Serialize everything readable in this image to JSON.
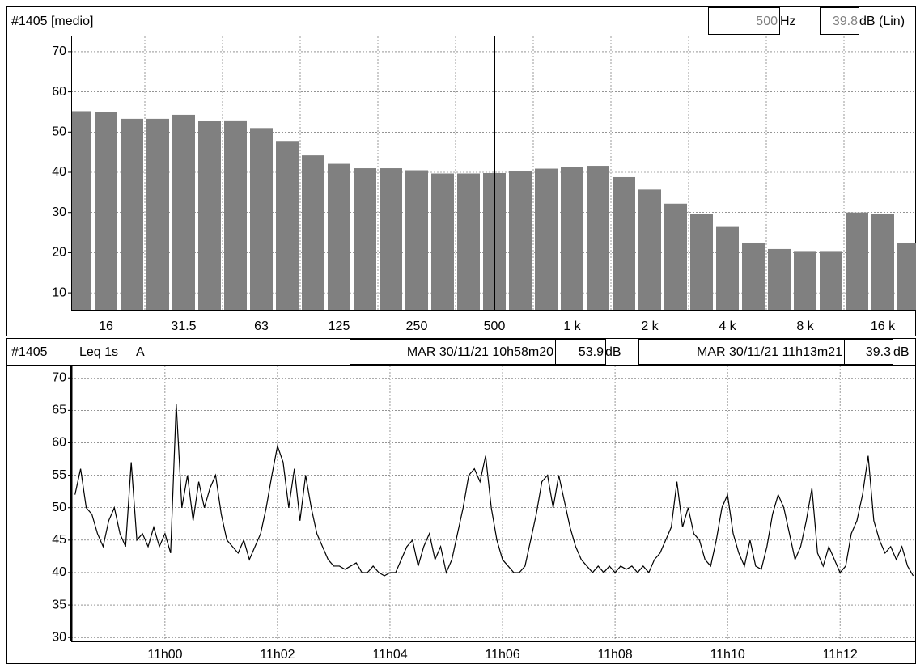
{
  "chart_data": [
    {
      "type": "bar",
      "header": {
        "source": "#1405 [medio]",
        "cursor_freq": "500",
        "freq_unit": "Hz",
        "cursor_level": "39.8",
        "level_unit": "dB (Lin)"
      },
      "categories": [
        null,
        "16",
        null,
        null,
        "31.5",
        null,
        null,
        "63",
        null,
        null,
        "125",
        null,
        null,
        "250",
        null,
        null,
        "500",
        null,
        null,
        "1 k",
        null,
        null,
        "2 k",
        null,
        null,
        "4 k",
        null,
        null,
        "8 k",
        null,
        null,
        "16 k",
        null
      ],
      "values": [
        55.2,
        54.9,
        53.3,
        53.3,
        54.3,
        52.7,
        52.9,
        51.0,
        47.8,
        44.2,
        42.1,
        41.0,
        41.0,
        40.5,
        39.7,
        39.7,
        39.8,
        40.2,
        40.9,
        41.3,
        41.6,
        38.8,
        35.7,
        32.2,
        29.6,
        26.4,
        22.5,
        20.9,
        20.4,
        20.4,
        30.0,
        29.6,
        22.5
      ],
      "color": "#808080",
      "ylim": [
        5.8,
        73.8
      ],
      "yticks": [
        10,
        20,
        30,
        40,
        50,
        60,
        70
      ],
      "grid": true
    },
    {
      "type": "line",
      "header": {
        "source": "#1405",
        "measure": "Leq 1s",
        "weighting": "A",
        "start_time": "MAR 30/11/21 10h58m20",
        "start_level": "53.9",
        "start_unit": "dB",
        "end_time": "MAR 30/11/21 11h13m21",
        "end_level": "39.3",
        "end_unit": "dB"
      },
      "x": [
        658.4,
        658.5,
        658.6,
        658.7,
        658.8,
        658.9,
        659.0,
        659.1,
        659.2,
        659.3,
        659.4,
        659.5,
        659.6,
        659.7,
        659.8,
        659.9,
        660.0,
        660.1,
        660.2,
        660.3,
        660.4,
        660.5,
        660.6,
        660.7,
        660.8,
        660.9,
        661.0,
        661.1,
        661.2,
        661.3,
        661.4,
        661.5,
        661.6,
        661.7,
        661.8,
        661.9,
        662.0,
        662.1,
        662.2,
        662.3,
        662.4,
        662.5,
        662.6,
        662.7,
        662.8,
        662.9,
        663.0,
        663.1,
        663.2,
        663.3,
        663.4,
        663.5,
        663.6,
        663.7,
        663.8,
        663.9,
        664.0,
        664.1,
        664.2,
        664.3,
        664.4,
        664.5,
        664.6,
        664.7,
        664.8,
        664.9,
        665.0,
        665.1,
        665.2,
        665.3,
        665.4,
        665.5,
        665.6,
        665.7,
        665.8,
        665.9,
        666.0,
        666.1,
        666.2,
        666.3,
        666.4,
        666.5,
        666.6,
        666.7,
        666.8,
        666.9,
        667.0,
        667.1,
        667.2,
        667.3,
        667.4,
        667.5,
        667.6,
        667.7,
        667.8,
        667.9,
        668.0,
        668.1,
        668.2,
        668.3,
        668.4,
        668.5,
        668.6,
        668.7,
        668.8,
        668.9,
        669.0,
        669.1,
        669.2,
        669.3,
        669.4,
        669.5,
        669.6,
        669.7,
        669.8,
        669.9,
        670.0,
        670.1,
        670.2,
        670.3,
        670.4,
        670.5,
        670.6,
        670.7,
        670.8,
        670.9,
        671.0,
        671.1,
        671.2,
        671.3,
        671.4,
        671.5,
        671.6,
        671.7,
        671.8,
        671.9,
        672.0,
        672.1,
        672.2,
        672.3,
        672.4,
        672.5,
        672.6,
        672.7,
        672.8,
        672.9,
        673.0,
        673.1,
        673.2,
        673.3
      ],
      "values": [
        52,
        56,
        50,
        49,
        46,
        44,
        48,
        50,
        46,
        44,
        57,
        45,
        46,
        44,
        47,
        44,
        46,
        43,
        66,
        50,
        55,
        48,
        54,
        50,
        53,
        55,
        49,
        45,
        44,
        43,
        45,
        42,
        44,
        46,
        50,
        55,
        59.5,
        57,
        50,
        56,
        48,
        55,
        50,
        46,
        44,
        42,
        41,
        41,
        40.5,
        41,
        41.5,
        40,
        40,
        41,
        40,
        39.5,
        40,
        40,
        42,
        44,
        45,
        41,
        44,
        46,
        42,
        44,
        40,
        42,
        46,
        50,
        55,
        56,
        54,
        58,
        50,
        45,
        42,
        41,
        40,
        40,
        41,
        45,
        49,
        54,
        55,
        50,
        55,
        51,
        47,
        44,
        42,
        41,
        40,
        41,
        40,
        41,
        40,
        41,
        40.5,
        41,
        40,
        41,
        40,
        42,
        43,
        45,
        47,
        54,
        47,
        50,
        46,
        45,
        42,
        41,
        45,
        50,
        52,
        46,
        43,
        41,
        45,
        41,
        40.5,
        44,
        49,
        52,
        50,
        46,
        42,
        44,
        48,
        53,
        43,
        41,
        44,
        42,
        40,
        41,
        46,
        48,
        52,
        58,
        48,
        45,
        43,
        44,
        42,
        44,
        41,
        39.5
      ],
      "color": "#000000",
      "xlim": [
        658.333,
        673.35
      ],
      "xticks": [
        {
          "value": 660,
          "label": "11h00"
        },
        {
          "value": 662,
          "label": "11h02"
        },
        {
          "value": 664,
          "label": "11h04"
        },
        {
          "value": 666,
          "label": "11h06"
        },
        {
          "value": 668,
          "label": "11h08"
        },
        {
          "value": 670,
          "label": "11h10"
        },
        {
          "value": 672,
          "label": "11h12"
        }
      ],
      "ylim": [
        29.4,
        71.9
      ],
      "yticks": [
        30,
        35,
        40,
        45,
        50,
        55,
        60,
        65,
        70
      ],
      "grid": true
    }
  ]
}
